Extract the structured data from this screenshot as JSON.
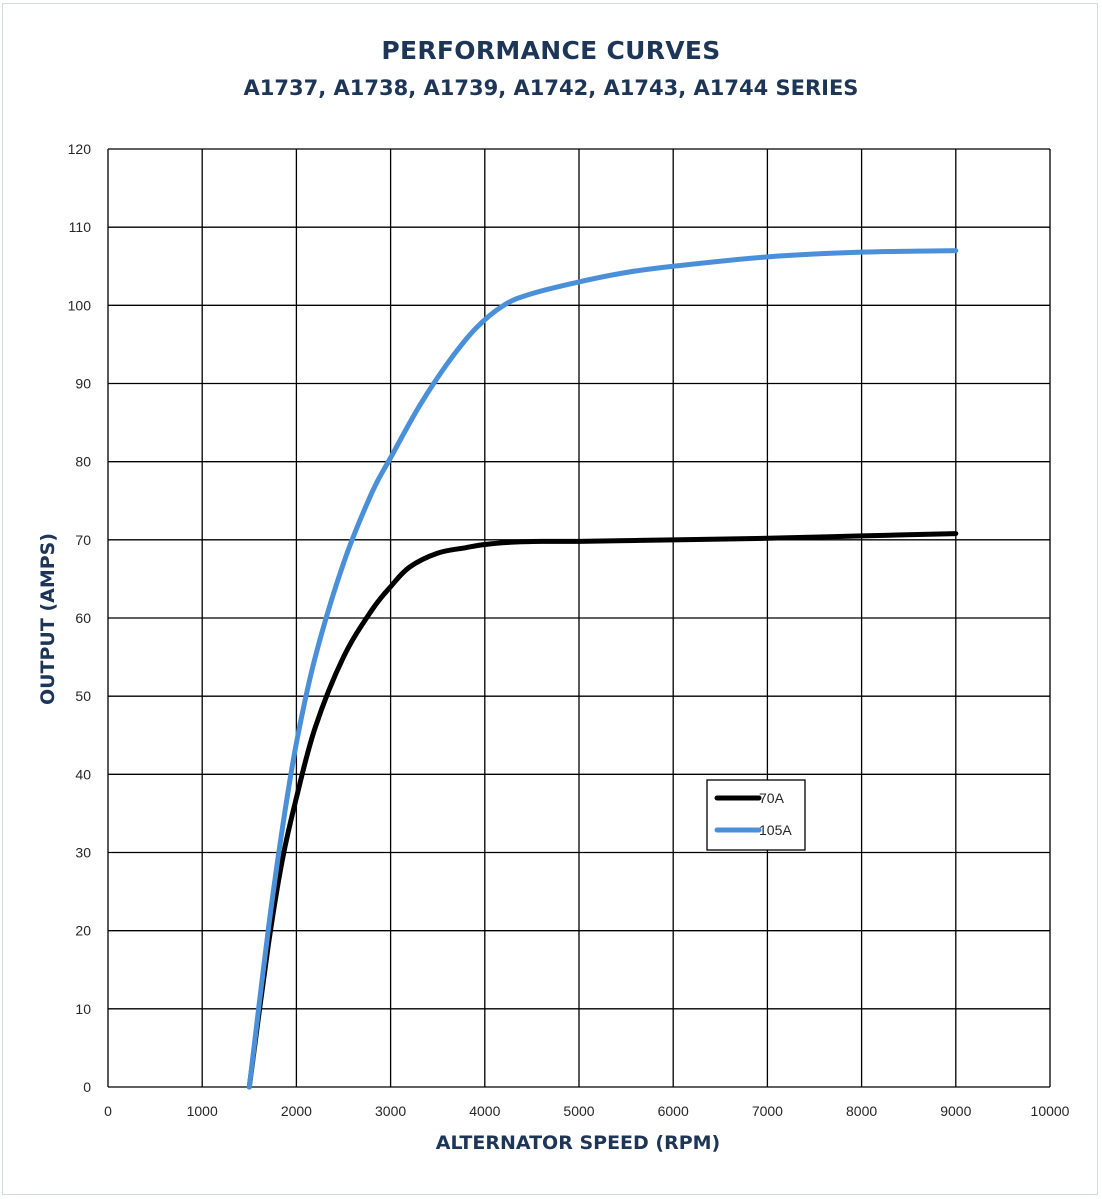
{
  "chart_data": {
    "type": "line",
    "title": "PERFORMANCE CURVES",
    "subtitle": "A1737, A1738, A1739, A1742, A1743, A1744 SERIES",
    "xlabel": "ALTERNATOR SPEED (RPM)",
    "ylabel": "OUTPUT (AMPS)",
    "xlim": [
      0,
      10000
    ],
    "ylim": [
      0,
      120
    ],
    "x_ticks": [
      0,
      1000,
      2000,
      3000,
      4000,
      5000,
      6000,
      7000,
      8000,
      9000,
      10000
    ],
    "y_ticks": [
      0,
      10,
      20,
      30,
      40,
      50,
      60,
      70,
      80,
      90,
      100,
      110,
      120
    ],
    "grid": true,
    "legend_position": "right-center",
    "series": [
      {
        "name": "70A",
        "color": "#000000",
        "x": [
          1500,
          1700,
          1850,
          2000,
          2200,
          2500,
          2800,
          3000,
          3200,
          3500,
          3800,
          4000,
          4300,
          4600,
          5000,
          5500,
          6000,
          7000,
          8000,
          9000
        ],
        "y": [
          0,
          18,
          29,
          37,
          46,
          55,
          61,
          64,
          66.5,
          68.3,
          69,
          69.4,
          69.7,
          69.8,
          69.8,
          69.9,
          70,
          70.2,
          70.5,
          70.8
        ]
      },
      {
        "name": "105A",
        "color": "#4a90d9",
        "x": [
          1500,
          1700,
          1850,
          2000,
          2200,
          2500,
          2800,
          3000,
          3300,
          3600,
          3900,
          4200,
          4500,
          5000,
          5500,
          6000,
          7000,
          8000,
          9000
        ],
        "y": [
          0,
          20,
          33,
          44,
          55,
          67,
          76,
          80.5,
          87,
          92.5,
          97,
          100,
          101.5,
          103,
          104.2,
          105,
          106.2,
          106.8,
          107
        ]
      }
    ]
  }
}
